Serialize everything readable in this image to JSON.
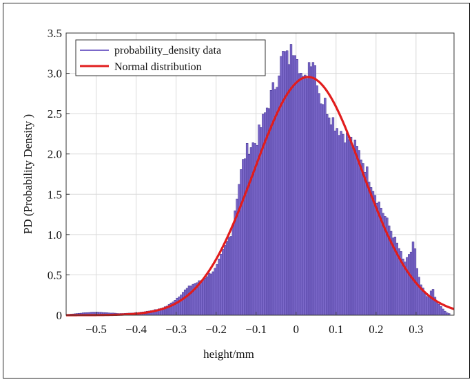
{
  "chart_data": {
    "type": "bar",
    "title": "",
    "xlabel": "height/mm",
    "ylabel": "PD (Probability Density )",
    "xlim": [
      -0.575,
      0.395
    ],
    "ylim": [
      0,
      3.5
    ],
    "x_ticks": [
      -0.5,
      -0.4,
      -0.3,
      -0.2,
      -0.1,
      0,
      0.1,
      0.2,
      0.3
    ],
    "x_tick_labels": [
      "−0.5",
      "−0.4",
      "−0.3",
      "−0.2",
      "−0.1",
      "0",
      "0.1",
      "0.2",
      "0.3"
    ],
    "y_ticks": [
      0,
      0.5,
      1.0,
      1.5,
      2.0,
      2.5,
      3.0,
      3.5
    ],
    "y_tick_labels": [
      "0",
      "0.5",
      "1.0",
      "1.5",
      "2.0",
      "2.5",
      "3.0",
      "3.5"
    ],
    "grid": true,
    "legend_position": "top-left",
    "bin_width": 0.005,
    "series": [
      {
        "name": "probability_density data",
        "kind": "histogram",
        "color": "#7b68c9",
        "edge_color": "#3a2a8a",
        "points": [
          [
            -0.57,
            0.01
          ],
          [
            -0.55,
            0.02
          ],
          [
            -0.53,
            0.03
          ],
          [
            -0.5,
            0.04
          ],
          [
            -0.47,
            0.03
          ],
          [
            -0.44,
            0.02
          ],
          [
            -0.4,
            0.03
          ],
          [
            -0.37,
            0.05
          ],
          [
            -0.34,
            0.08
          ],
          [
            -0.32,
            0.12
          ],
          [
            -0.3,
            0.2
          ],
          [
            -0.28,
            0.3
          ],
          [
            -0.26,
            0.38
          ],
          [
            -0.24,
            0.42
          ],
          [
            -0.22,
            0.5
          ],
          [
            -0.2,
            0.58
          ],
          [
            -0.18,
            0.82
          ],
          [
            -0.16,
            1.05
          ],
          [
            -0.15,
            1.4
          ],
          [
            -0.14,
            1.72
          ],
          [
            -0.13,
            1.95
          ],
          [
            -0.12,
            2.08
          ],
          [
            -0.1,
            2.15
          ],
          [
            -0.09,
            2.3
          ],
          [
            -0.08,
            2.45
          ],
          [
            -0.07,
            2.62
          ],
          [
            -0.06,
            2.75
          ],
          [
            -0.05,
            2.9
          ],
          [
            -0.04,
            3.12
          ],
          [
            -0.03,
            3.25
          ],
          [
            -0.02,
            3.15
          ],
          [
            -0.01,
            3.3
          ],
          [
            0.0,
            3.38
          ],
          [
            0.01,
            3.05
          ],
          [
            0.02,
            2.82
          ],
          [
            0.03,
            3.1
          ],
          [
            0.04,
            3.25
          ],
          [
            0.05,
            3.05
          ],
          [
            0.06,
            2.7
          ],
          [
            0.07,
            2.65
          ],
          [
            0.08,
            2.55
          ],
          [
            0.1,
            2.35
          ],
          [
            0.12,
            2.25
          ],
          [
            0.14,
            2.15
          ],
          [
            0.16,
            2.0
          ],
          [
            0.18,
            1.75
          ],
          [
            0.2,
            1.48
          ],
          [
            0.22,
            1.25
          ],
          [
            0.24,
            1.02
          ],
          [
            0.26,
            0.8
          ],
          [
            0.27,
            0.65
          ],
          [
            0.28,
            0.7
          ],
          [
            0.29,
            0.82
          ],
          [
            0.295,
            1.0
          ],
          [
            0.3,
            0.62
          ],
          [
            0.31,
            0.4
          ],
          [
            0.32,
            0.3
          ],
          [
            0.33,
            0.2
          ],
          [
            0.34,
            0.35
          ],
          [
            0.35,
            0.18
          ],
          [
            0.36,
            0.12
          ],
          [
            0.37,
            0.06
          ],
          [
            0.38,
            0.02
          ]
        ]
      },
      {
        "name": "Normal distribution",
        "kind": "line",
        "color": "#e11d1d",
        "params": {
          "mean": 0.03,
          "std": 0.135
        }
      }
    ]
  }
}
